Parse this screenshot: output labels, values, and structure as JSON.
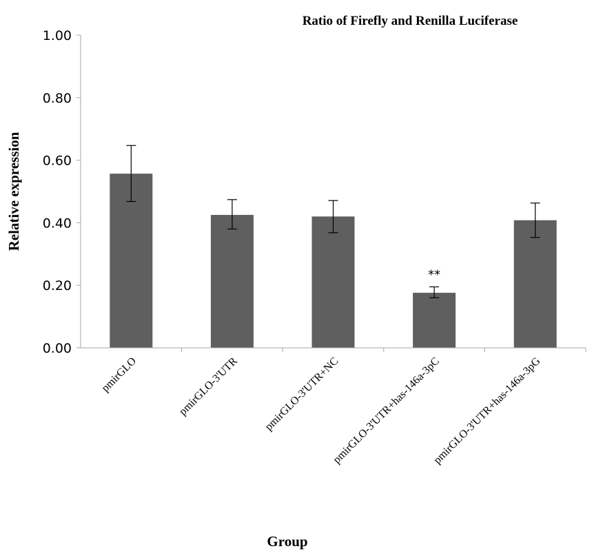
{
  "chart_data": {
    "type": "bar",
    "title": "Ratio of Firefly and Renilla Luciferase",
    "xlabel": "Group",
    "ylabel": "Relative expression",
    "categories": [
      "pmirGLO",
      "pmirGLO-3'UTR",
      "pmirGLO-3'UTR+NC",
      "pmirGLO-3'UTR+has-146a-3pC",
      "pmirGLO-3'UTR+has-146a-3pG"
    ],
    "values": [
      0.557,
      0.425,
      0.42,
      0.176,
      0.408
    ],
    "error_low": [
      0.468,
      0.38,
      0.368,
      0.16,
      0.353
    ],
    "error_high": [
      0.647,
      0.474,
      0.471,
      0.195,
      0.463
    ],
    "annotations": [
      "",
      "",
      "",
      "**",
      ""
    ],
    "ylim": [
      0,
      1
    ],
    "yticks": [
      "0.00",
      "0.20",
      "0.40",
      "0.60",
      "0.80",
      "1.00"
    ],
    "ytick_values": [
      0,
      0.2,
      0.4,
      0.6,
      0.8,
      1.0
    ],
    "grid": false,
    "bar_color": "#5f5f5f",
    "axis_color": "#a6a6a6"
  }
}
